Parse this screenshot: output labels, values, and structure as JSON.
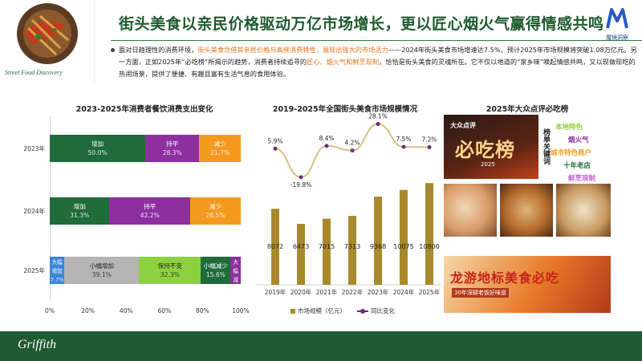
{
  "header": {
    "title": "街头美食以亲民价格驱动万亿市场增长，更以匠心烟火气赢得情感共鸣",
    "street_label": "Street Food Discovery",
    "logo_text": "魔镜洞察"
  },
  "paragraph": {
    "p1": "面对日趋理性的消费环境，",
    "h1": "街头美食凭借其亲民价格与高频消费特性，展现出强大的市场活力",
    "p2": "——2024年街头美食市场增速达7.5%，预计2025年市场规模将突破1.08万亿元。另一方面，正如2025年“必吃榜”所揭示的趋势，消费者持续追寻的",
    "h2": "匠心、烟火气和鲜烹现制",
    "p3": "，恰恰是街头美食的灵魂所在。它不仅以地道的“家乡味”唤起情感共鸣，又以现做现吃的热闹场景，提供了便捷、有趣且富有生活气息的食用体验。"
  },
  "chart_titles": {
    "left": "2023-2025年消费者餐饮消费支出变化",
    "middle": "2019-2025年全国街头美食市场规模情况",
    "right": "2025年大众点评必吃榜"
  },
  "chart_data": [
    {
      "type": "bar",
      "orientation": "horizontal-stacked-100",
      "title": "2023-2025年消费者餐饮消费支出变化",
      "categories": [
        "2023年",
        "2024年",
        "2025年"
      ],
      "x_ticks": [
        "0%",
        "20%",
        "40%",
        "60%",
        "80%",
        "100%"
      ],
      "rows": [
        {
          "year": "2023年",
          "segments": [
            {
              "name": "增加",
              "value": 50.0,
              "label": "50.0%",
              "color": "#1f6b3a"
            },
            {
              "name": "持平",
              "value": 28.3,
              "label": "28.3%",
              "color": "#8e2fa0"
            },
            {
              "name": "减少",
              "value": 21.7,
              "label": "21.7%",
              "color": "#f39a1e"
            }
          ]
        },
        {
          "year": "2024年",
          "segments": [
            {
              "name": "增加",
              "value": 31.3,
              "label": "31.3%",
              "color": "#1f6b3a"
            },
            {
              "name": "持平",
              "value": 42.2,
              "label": "42.2%",
              "color": "#8e2fa0"
            },
            {
              "name": "减少",
              "value": 26.5,
              "label": "26.5%",
              "color": "#f39a1e"
            }
          ]
        },
        {
          "year": "2025年",
          "segments": [
            {
              "name": "大幅增加",
              "value": 7.7,
              "label": "7.7%",
              "color": "#3a86d6"
            },
            {
              "name": "小幅增加",
              "value": 39.1,
              "label": "39.1%",
              "color": "#b5b5b5"
            },
            {
              "name": "保持不变",
              "value": 32.3,
              "label": "32.3%",
              "color": "#8ed13f"
            },
            {
              "name": "小幅减少",
              "value": 15.6,
              "label": "15.6%",
              "color": "#1f6b3a"
            },
            {
              "name": "大幅减少",
              "value": 5.3,
              "label": "5.3%",
              "color": "#8e2fa0"
            }
          ]
        }
      ]
    },
    {
      "type": "bar",
      "title": "2019-2025年全国街头美食市场规模情况",
      "categories": [
        "2019年",
        "2020年",
        "2021年",
        "2022年",
        "2023年",
        "2024年",
        "2025年"
      ],
      "series": [
        {
          "name": "市场规模（亿元）",
          "values": [
            8072,
            6473,
            7015,
            7313,
            9368,
            10075,
            10800
          ],
          "color": "#a88a2c"
        },
        {
          "name": "同比变化",
          "type": "line",
          "values": [
            5.9,
            -19.8,
            8.4,
            4.2,
            28.1,
            7.5,
            7.2
          ],
          "labels": [
            "5.9%",
            "-19.8%",
            "8.4%",
            "4.2%",
            "28.1%",
            "7.5%",
            "7.2%"
          ],
          "color": "#d8c080"
        }
      ],
      "bar_labels": [
        "8072",
        "6473",
        "7015",
        "7313",
        "9368",
        "10075",
        "10800"
      ],
      "legend": [
        "市场规模（亿元）",
        "同比变化"
      ],
      "ylim": [
        0,
        11500
      ],
      "line_ylim": [
        -30,
        35
      ]
    }
  ],
  "bichi": {
    "brand": "大众点评",
    "big_title": "必吃榜",
    "year": "2025",
    "vertical_label": "榜单关键词",
    "keywords": [
      {
        "text": "本地特色",
        "color": "#8ed13f"
      },
      {
        "text": "烟火气",
        "color": "#8e2fa0"
      },
      {
        "text": "城市特色商户",
        "color": "#f39a1e"
      },
      {
        "text": "十年老店",
        "color": "#1f6b3a"
      },
      {
        "text": "鲜烹现制",
        "color": "#c25bd1"
      }
    ],
    "banner_text": "龙游地标美食必吃",
    "banner_sub": "30年深耕老饭好味道"
  },
  "footer": {
    "brand": "Griffith"
  },
  "colors": {
    "brand_green": "#1f5a32",
    "accent_orange": "#e8701a"
  }
}
